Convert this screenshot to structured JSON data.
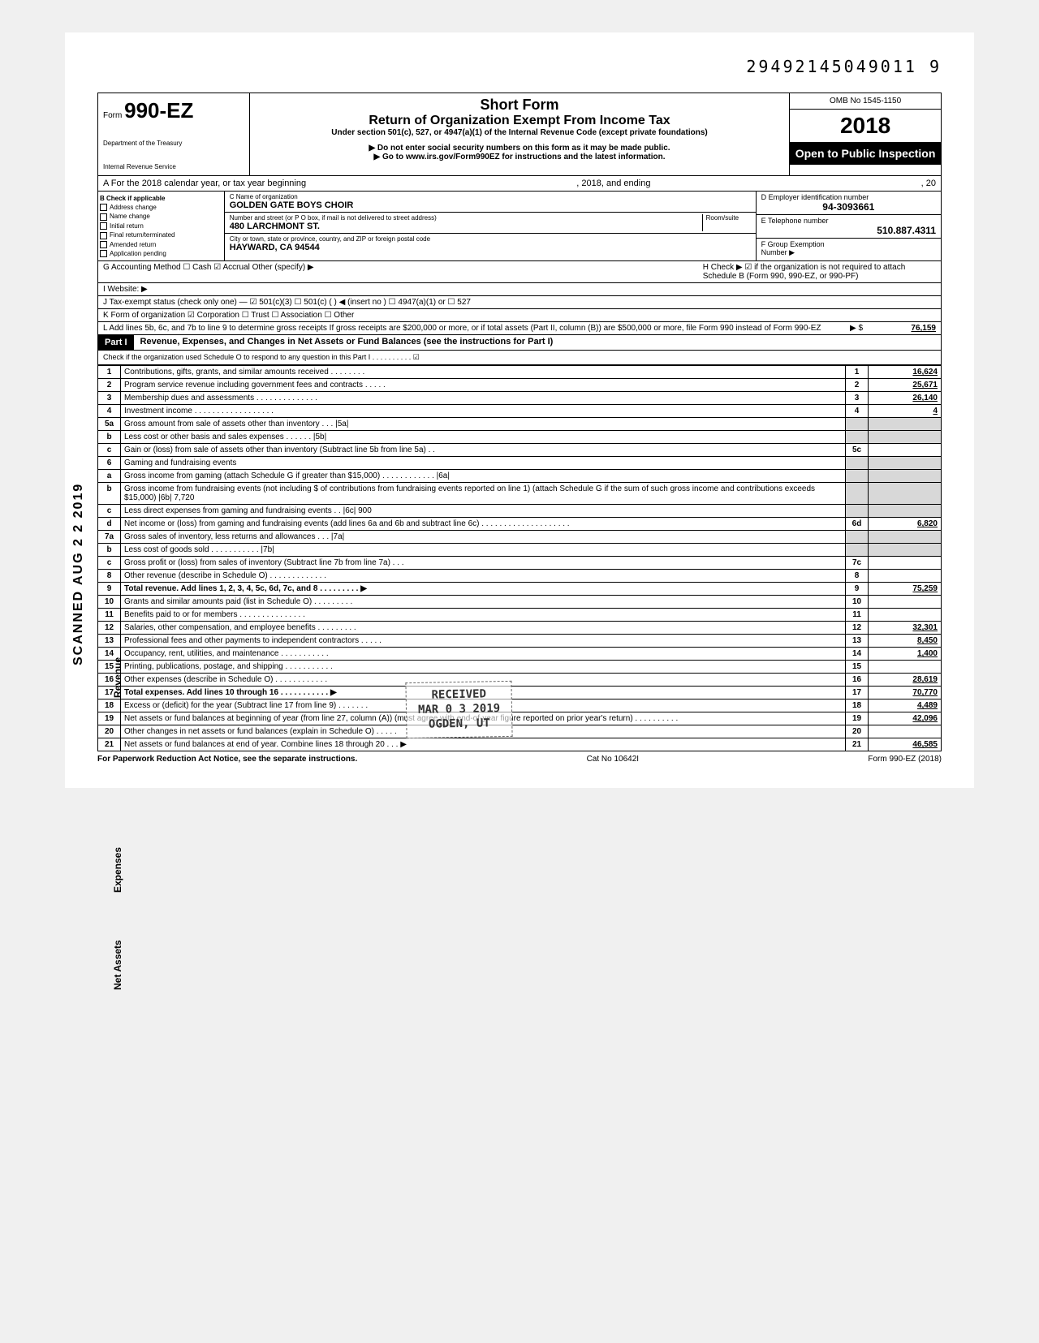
{
  "top_id": "29492145049011  9",
  "form": {
    "prefix": "Form",
    "number": "990-EZ",
    "dept1": "Department of the Treasury",
    "dept2": "Internal Revenue Service",
    "title1": "Short Form",
    "title2": "Return of Organization Exempt From Income Tax",
    "sub1": "Under section 501(c), 527, or 4947(a)(1) of the Internal Revenue Code (except private foundations)",
    "sub2": "▶ Do not enter social security numbers on this form as it may be made public.",
    "sub3": "▶ Go to www.irs.gov/Form990EZ for instructions and the latest information.",
    "omb": "OMB No 1545-1150",
    "year": "2018",
    "open": "Open to Public Inspection"
  },
  "rowA": {
    "left": "A For the 2018 calendar year, or tax year beginning",
    "mid": ", 2018, and ending",
    "right": ", 20"
  },
  "colB": {
    "hdr": "B  Check if applicable",
    "items": [
      "Address change",
      "Name change",
      "Initial return",
      "Final return/terminated",
      "Amended return",
      "Application pending"
    ]
  },
  "colC": {
    "name_lbl": "C  Name of organization",
    "name": "GOLDEN GATE BOYS CHOIR",
    "addr_lbl": "Number and street (or P O  box, if mail is not delivered to street address)",
    "room_lbl": "Room/suite",
    "addr": "480 LARCHMONT ST.",
    "city_lbl": "City or town, state or province, country, and ZIP or foreign postal code",
    "city": "HAYWARD, CA  94544"
  },
  "colD": {
    "d_lbl": "D Employer identification number",
    "d_val": "94-3093661",
    "e_lbl": "E Telephone number",
    "e_val": "510.887.4311",
    "f_lbl": "F Group Exemption",
    "f_lbl2": "Number ▶"
  },
  "meta": {
    "g": "G  Accounting Method     ☐ Cash    ☑ Accrual    Other (specify) ▶",
    "h": "H  Check ▶ ☑ if the organization is not required to attach Schedule B (Form 990, 990-EZ, or 990-PF)",
    "i": "I   Website: ▶",
    "j": "J  Tax-exempt status (check only one) — ☑ 501(c)(3)   ☐ 501(c) (        ) ◀ (insert no )  ☐ 4947(a)(1) or   ☐ 527",
    "k": "K  Form of organization    ☑ Corporation    ☐ Trust    ☐ Association    ☐ Other",
    "l": "L  Add lines 5b, 6c, and 7b to line 9 to determine gross receipts  If gross receipts are $200,000 or more, or if total assets (Part II, column (B)) are $500,000 or more, file Form 990 instead of Form 990-EZ",
    "l_arrow": "▶  $",
    "l_val": "76,159"
  },
  "part1": {
    "hdr": "Part I",
    "title": "Revenue, Expenses, and Changes in Net Assets or Fund Balances (see the instructions for Part I)",
    "sub": "Check if the organization used Schedule O to respond to any question in this Part I  .   .   .   .   .   .   .   .   .   .   ☑"
  },
  "lines": [
    {
      "n": "1",
      "d": "Contributions, gifts, grants, and similar amounts received   .   .   .   .   .   .   .   .",
      "b": "1",
      "v": "16,624"
    },
    {
      "n": "2",
      "d": "Program service revenue including government fees and contracts   .   .   .   .   .",
      "b": "2",
      "v": "25,671"
    },
    {
      "n": "3",
      "d": "Membership dues and assessments   .   .   .   .   .   .   .   .   .   .   .   .   .   .",
      "b": "3",
      "v": "26,140"
    },
    {
      "n": "4",
      "d": "Investment income   .   .   .   .   .   .   .   .   .   .   .   .   .   .   .   .   .   .",
      "b": "4",
      "v": "4"
    },
    {
      "n": "5a",
      "d": "Gross amount from sale of assets other than inventory   .   .   .   |5a|",
      "b": "",
      "v": "",
      "shade": true
    },
    {
      "n": "b",
      "d": "Less  cost or other basis and sales expenses   .   .   .   .   .   .   |5b|",
      "b": "",
      "v": "",
      "shade": true
    },
    {
      "n": "c",
      "d": "Gain or (loss) from sale of assets other than inventory (Subtract line 5b from line 5a)   .   .",
      "b": "5c",
      "v": ""
    },
    {
      "n": "6",
      "d": "Gaming and fundraising events",
      "b": "",
      "v": "",
      "shade": true
    },
    {
      "n": "a",
      "d": "Gross income from gaming (attach Schedule G if greater than $15,000)   .   .   .   .   .   .   .   .   .   .   .   .   |6a|",
      "b": "",
      "v": "",
      "shade": true
    },
    {
      "n": "b",
      "d": "Gross income from fundraising events (not including  $                of contributions from fundraising events reported on line 1) (attach Schedule G if the sum of such gross income and contributions exceeds $15,000)   |6b|   7,720",
      "b": "",
      "v": "",
      "shade": true
    },
    {
      "n": "c",
      "d": "Less  direct expenses from gaming and fundraising events   .   .   |6c|   900",
      "b": "",
      "v": "",
      "shade": true
    },
    {
      "n": "d",
      "d": "Net income or (loss) from gaming and fundraising events (add lines 6a and 6b and subtract line 6c)   .   .   .   .   .   .   .   .   .   .   .   .   .   .   .   .   .   .   .   .",
      "b": "6d",
      "v": "6,820"
    },
    {
      "n": "7a",
      "d": "Gross sales of inventory, less returns and allowances   .   .   .   |7a|",
      "b": "",
      "v": "",
      "shade": true
    },
    {
      "n": "b",
      "d": "Less  cost of goods sold   .   .   .   .   .   .   .   .   .   .   .   |7b|",
      "b": "",
      "v": "",
      "shade": true
    },
    {
      "n": "c",
      "d": "Gross profit or (loss) from sales of inventory (Subtract line 7b from line 7a)   .   .   .",
      "b": "7c",
      "v": ""
    },
    {
      "n": "8",
      "d": "Other revenue (describe in Schedule O)   .   .   .   .   .   .   .   .   .   .   .   .   .",
      "b": "8",
      "v": ""
    },
    {
      "n": "9",
      "d": "Total revenue. Add lines 1, 2, 3, 4, 5c, 6d, 7c, and 8   .   .   .   .   .   .   .   .   .   ▶",
      "b": "9",
      "v": "75,259",
      "bold": true
    },
    {
      "n": "10",
      "d": "Grants and similar amounts paid (list in Schedule O)   .   .   .   .   .   .   .   .   .",
      "b": "10",
      "v": ""
    },
    {
      "n": "11",
      "d": "Benefits paid to or for members   .   .   .   .   .   .   .   .   .   .   .   .   .   .   .",
      "b": "11",
      "v": ""
    },
    {
      "n": "12",
      "d": "Salaries, other compensation, and employee benefits   .   .   .   .   .   .   .   .   .",
      "b": "12",
      "v": "32,301"
    },
    {
      "n": "13",
      "d": "Professional fees and other payments to independent contractors   .   .   .   .   .",
      "b": "13",
      "v": "8,450"
    },
    {
      "n": "14",
      "d": "Occupancy, rent, utilities, and maintenance   .   .   .   .   .   .   .   .   .   .   .",
      "b": "14",
      "v": "1,400"
    },
    {
      "n": "15",
      "d": "Printing, publications, postage, and shipping  .   .   .   .   .   .   .   .   .   .   .",
      "b": "15",
      "v": ""
    },
    {
      "n": "16",
      "d": "Other expenses (describe in Schedule O)  .   .   .   .   .   .   .   .   .   .   .   .",
      "b": "16",
      "v": "28,619"
    },
    {
      "n": "17",
      "d": "Total expenses. Add lines 10 through 16   .   .   .   .   .   .   .   .   .   .   .   ▶",
      "b": "17",
      "v": "70,770",
      "bold": true
    },
    {
      "n": "18",
      "d": "Excess or (deficit) for the year (Subtract line 17 from line 9)   .   .   .   .   .   .   .",
      "b": "18",
      "v": "4,489"
    },
    {
      "n": "19",
      "d": "Net assets or fund balances at beginning of year (from line 27, column (A)) (must agree with end-of-year figure reported on prior year's return)   .   .   .   .   .   .   .   .   .   .",
      "b": "19",
      "v": "42,096"
    },
    {
      "n": "20",
      "d": "Other changes in net assets or fund balances (explain in Schedule O)  .   .   .   .   .",
      "b": "20",
      "v": ""
    },
    {
      "n": "21",
      "d": "Net assets or fund balances at end of year. Combine lines 18 through 20   .   .   .   ▶",
      "b": "21",
      "v": "46,585"
    }
  ],
  "footer": {
    "left": "For Paperwork Reduction Act Notice, see the separate instructions.",
    "mid": "Cat No 10642I",
    "right": "Form 990-EZ (2018)"
  },
  "stamp": {
    "l1": "RECEIVED",
    "l2": "MAR 0 3 2019",
    "l3": "OGDEN, UT"
  },
  "scanned": "SCANNED  AUG 2 2 2019",
  "side": {
    "rev": "Revenue",
    "exp": "Expenses",
    "net": "Net Assets"
  }
}
